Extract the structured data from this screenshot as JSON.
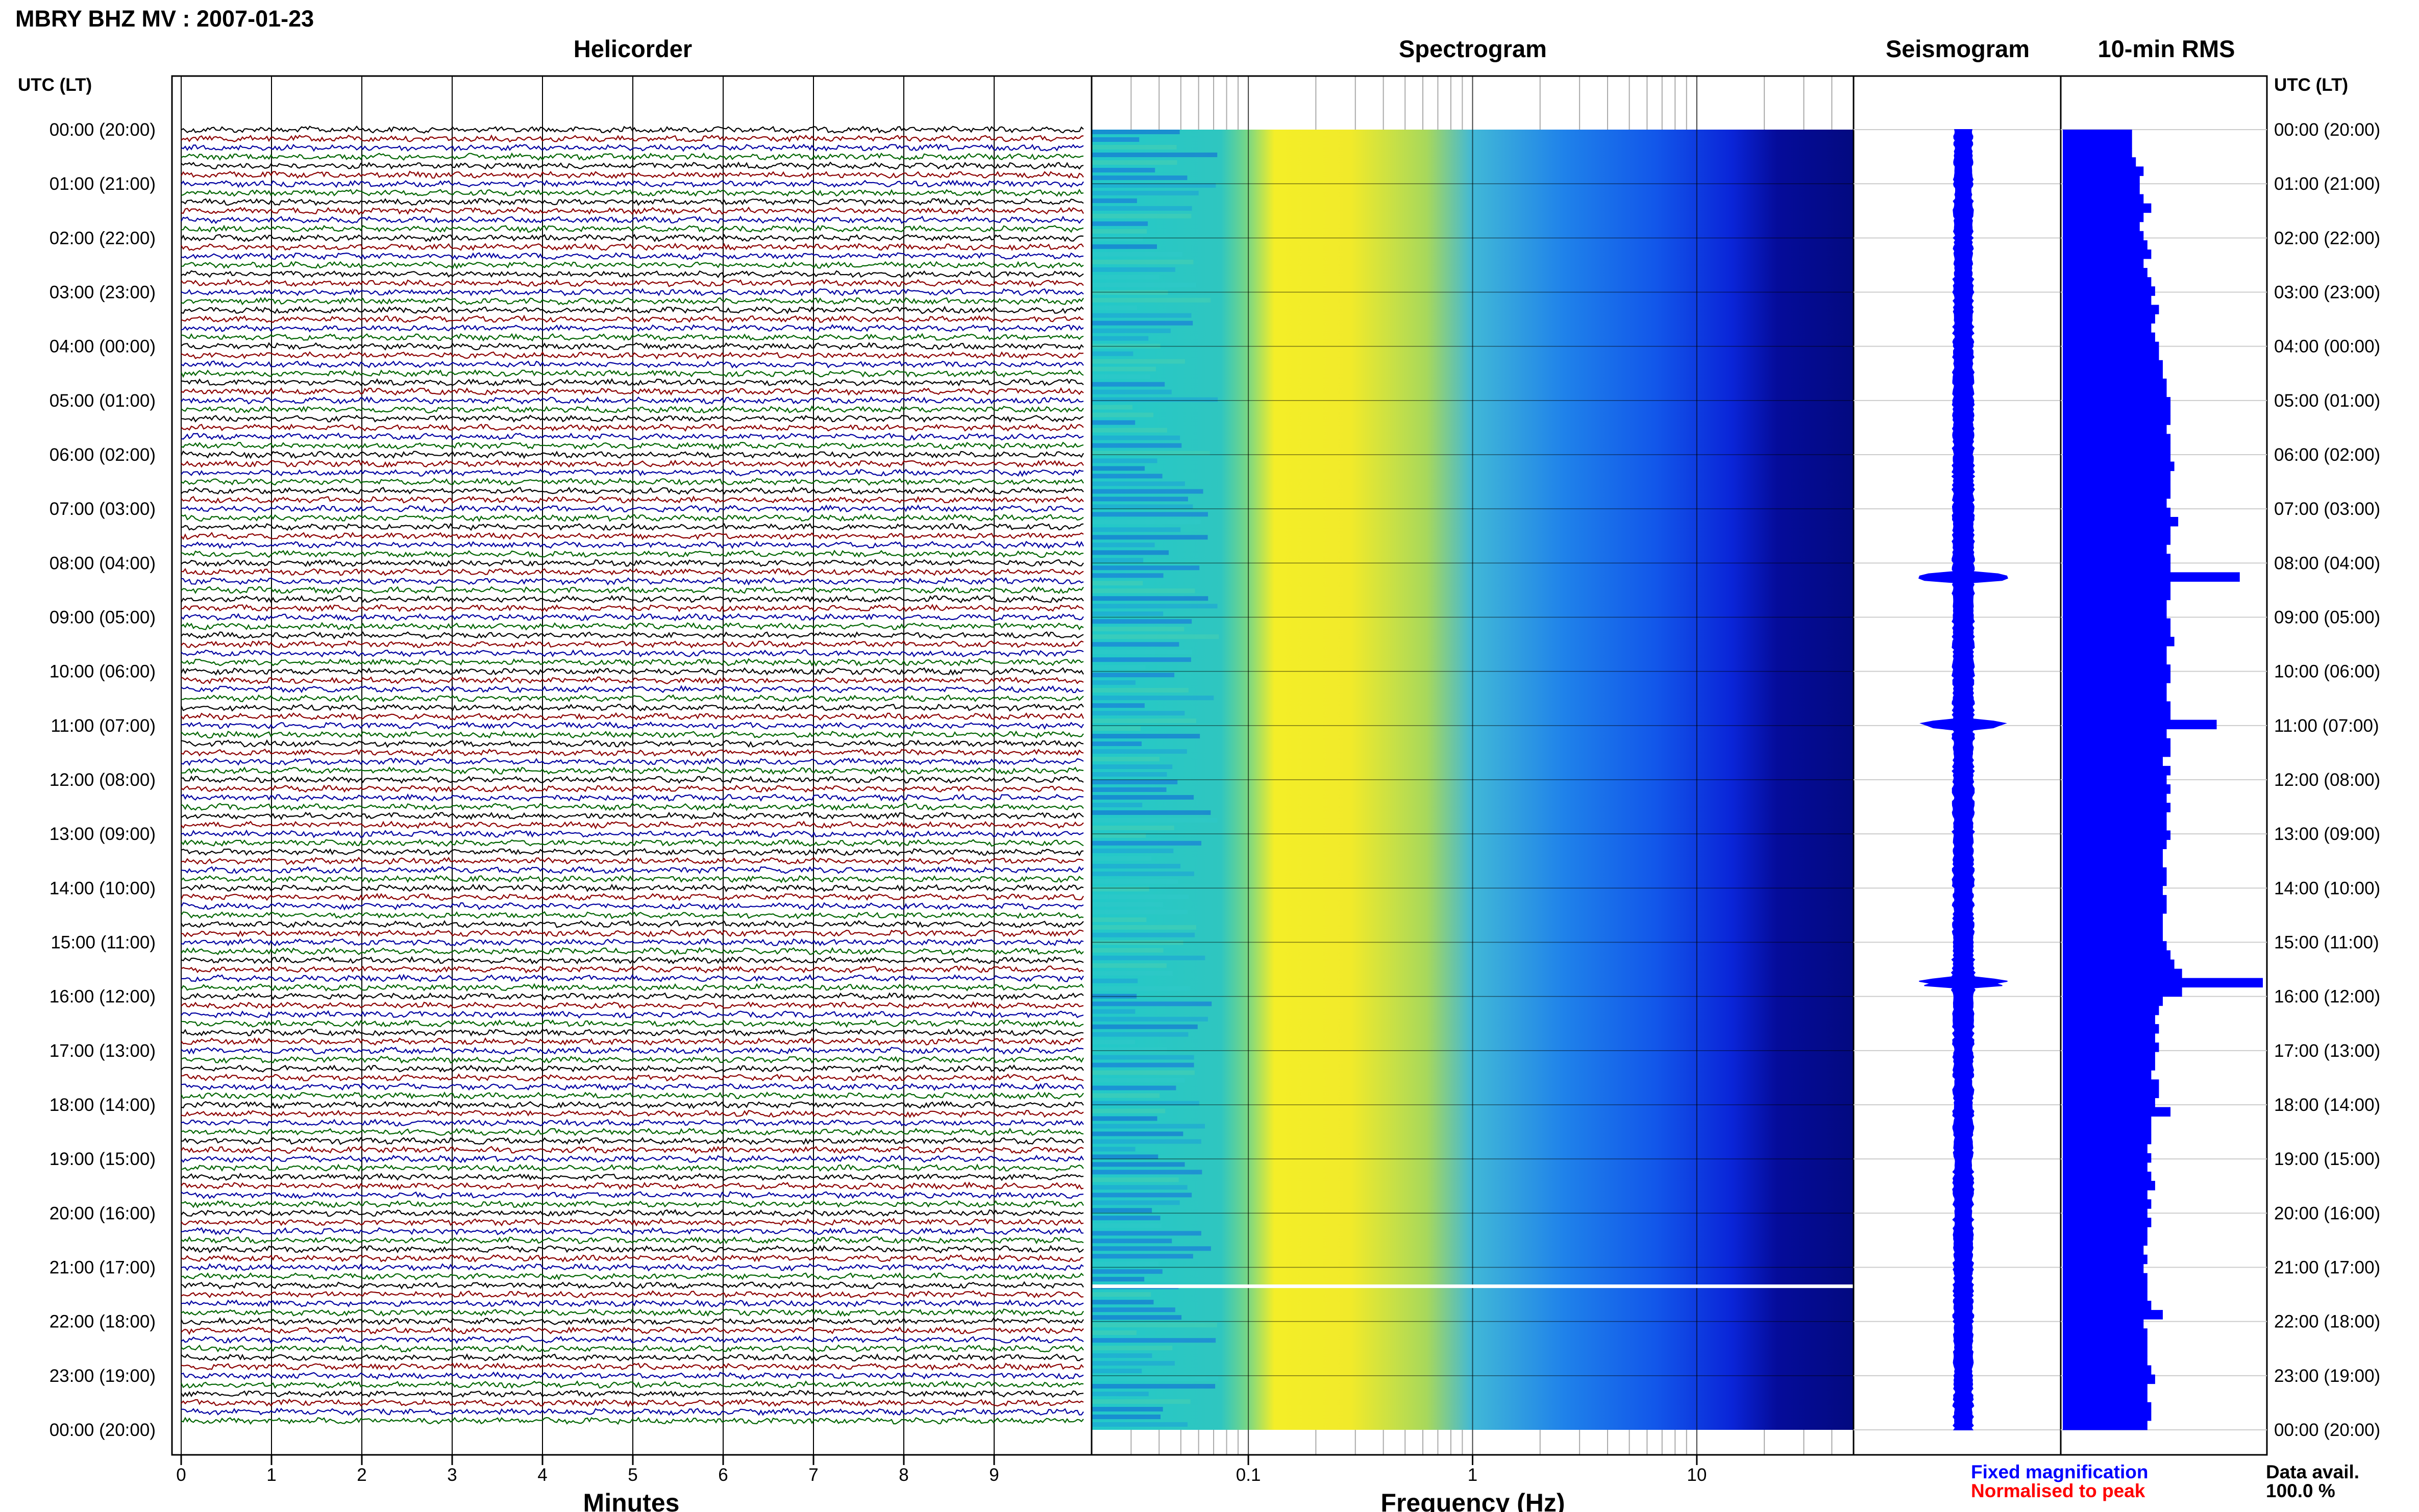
{
  "page_title": "MBRY BHZ MV : 2007-01-23",
  "panels": {
    "helicorder": "Helicorder",
    "spectrogram": "Spectrogram",
    "seismogram": "Seismogram",
    "rms": "10-min RMS"
  },
  "left_axis_label": "UTC (LT)",
  "right_axis_label": "UTC (LT)",
  "time_labels": [
    "00:00 (20:00)",
    "01:00 (21:00)",
    "02:00 (22:00)",
    "03:00 (23:00)",
    "04:00 (00:00)",
    "05:00 (01:00)",
    "06:00 (02:00)",
    "07:00 (03:00)",
    "08:00 (04:00)",
    "09:00 (05:00)",
    "10:00 (06:00)",
    "11:00 (07:00)",
    "12:00 (08:00)",
    "13:00 (09:00)",
    "14:00 (10:00)",
    "15:00 (11:00)",
    "16:00 (12:00)",
    "17:00 (13:00)",
    "18:00 (14:00)",
    "19:00 (15:00)",
    "20:00 (16:00)",
    "21:00 (17:00)",
    "22:00 (18:00)",
    "23:00 (19:00)",
    "00:00 (20:00)"
  ],
  "helicorder_axis": {
    "label": "Minutes",
    "ticks": [
      "0",
      "1",
      "2",
      "3",
      "4",
      "5",
      "6",
      "7",
      "8",
      "9"
    ]
  },
  "spectrogram_axis": {
    "label": "Frequency (Hz)",
    "ticks": [
      "0.1",
      "1",
      "10"
    ],
    "tick_values": [
      0.1,
      1,
      10
    ],
    "range_hz": [
      0.02,
      50
    ],
    "scale": "log"
  },
  "legend": {
    "fixed": "Fixed magnification",
    "normalised": "Normalised to peak",
    "fixed_color": "#0000ff",
    "normalised_color": "#ff0000"
  },
  "data_avail": {
    "label": "Data avail.",
    "value": "100.0 %"
  },
  "colors": {
    "trace": [
      "#000000",
      "#8b0000",
      "#0000a0",
      "#006400"
    ],
    "rms": "#0000ff",
    "seismogram": "#0000ff"
  },
  "chart_data": {
    "type": "heatmap",
    "date": "2007-01-23",
    "station": "MBRY",
    "channel": "BHZ",
    "network": "MV",
    "hours_utc": [
      0,
      1,
      2,
      3,
      4,
      5,
      6,
      7,
      8,
      9,
      10,
      11,
      12,
      13,
      14,
      15,
      16,
      17,
      18,
      19,
      20,
      21,
      22,
      23,
      24
    ],
    "minutes_range": [
      0,
      10
    ],
    "rms_10min": [
      0.36,
      0.36,
      0.36,
      0.38,
      0.42,
      0.4,
      0.4,
      0.42,
      0.46,
      0.42,
      0.4,
      0.42,
      0.44,
      0.46,
      0.42,
      0.44,
      0.46,
      0.48,
      0.46,
      0.5,
      0.48,
      0.46,
      0.48,
      0.5,
      0.5,
      0.52,
      0.52,
      0.54,
      0.54,
      0.56,
      0.56,
      0.56,
      0.54,
      0.56,
      0.56,
      0.56,
      0.58,
      0.56,
      0.56,
      0.56,
      0.54,
      0.56,
      0.6,
      0.56,
      0.56,
      0.54,
      0.56,
      0.56,
      0.92,
      0.56,
      0.56,
      0.54,
      0.54,
      0.56,
      0.56,
      0.58,
      0.54,
      0.54,
      0.56,
      0.56,
      0.54,
      0.54,
      0.56,
      0.56,
      0.8,
      0.54,
      0.56,
      0.56,
      0.52,
      0.56,
      0.54,
      0.56,
      0.54,
      0.56,
      0.54,
      0.54,
      0.56,
      0.54,
      0.52,
      0.52,
      0.54,
      0.54,
      0.52,
      0.54,
      0.54,
      0.52,
      0.52,
      0.52,
      0.54,
      0.56,
      0.58,
      0.62,
      1.04,
      0.62,
      0.52,
      0.5,
      0.48,
      0.5,
      0.48,
      0.5,
      0.48,
      0.48,
      0.46,
      0.5,
      0.5,
      0.48,
      0.56,
      0.46,
      0.46,
      0.46,
      0.44,
      0.46,
      0.44,
      0.46,
      0.48,
      0.44,
      0.46,
      0.44,
      0.46,
      0.44,
      0.44,
      0.42,
      0.44,
      0.42,
      0.44,
      0.44,
      0.44,
      0.46,
      0.52,
      0.42,
      0.44,
      0.44,
      0.44,
      0.44,
      0.46,
      0.48,
      0.44,
      0.44,
      0.46,
      0.46,
      0.44
    ]
  }
}
